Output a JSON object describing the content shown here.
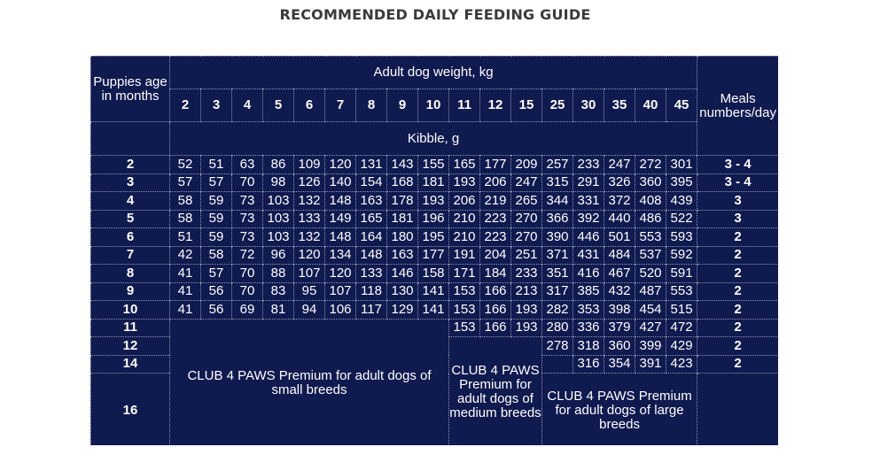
{
  "title": "RECOMMENDED DAILY FEEDING GUIDE",
  "header": {
    "age_label_1": "Puppies age",
    "age_label_2": "in months",
    "weight_label": "Adult dog weight, kg",
    "weights": [
      "2",
      "3",
      "4",
      "5",
      "6",
      "7",
      "8",
      "9",
      "10",
      "11",
      "12",
      "15",
      "25",
      "30",
      "35",
      "40",
      "45"
    ],
    "kibble_label": "Kibble, g",
    "meals_label_1": "Meals",
    "meals_label_2": "numbers/day"
  },
  "rows": [
    {
      "age": "2",
      "values": [
        "52",
        "51",
        "63",
        "86",
        "109",
        "120",
        "131",
        "143",
        "155",
        "165",
        "177",
        "209",
        "257",
        "233",
        "247",
        "272",
        "301"
      ],
      "meals": "3 - 4"
    },
    {
      "age": "3",
      "values": [
        "57",
        "57",
        "70",
        "98",
        "126",
        "140",
        "154",
        "168",
        "181",
        "193",
        "206",
        "247",
        "315",
        "291",
        "326",
        "360",
        "395"
      ],
      "meals": "3 - 4"
    },
    {
      "age": "4",
      "values": [
        "58",
        "59",
        "73",
        "103",
        "132",
        "148",
        "163",
        "178",
        "193",
        "206",
        "219",
        "265",
        "344",
        "331",
        "372",
        "408",
        "439"
      ],
      "meals": "3"
    },
    {
      "age": "5",
      "values": [
        "58",
        "59",
        "73",
        "103",
        "133",
        "149",
        "165",
        "181",
        "196",
        "210",
        "223",
        "270",
        "366",
        "392",
        "440",
        "486",
        "522"
      ],
      "meals": "3"
    },
    {
      "age": "6",
      "values": [
        "51",
        "59",
        "73",
        "103",
        "132",
        "148",
        "164",
        "180",
        "195",
        "210",
        "223",
        "270",
        "390",
        "446",
        "501",
        "553",
        "593"
      ],
      "meals": "2"
    },
    {
      "age": "7",
      "values": [
        "42",
        "58",
        "72",
        "96",
        "120",
        "134",
        "148",
        "163",
        "177",
        "191",
        "204",
        "251",
        "371",
        "431",
        "484",
        "537",
        "592"
      ],
      "meals": "2"
    },
    {
      "age": "8",
      "values": [
        "41",
        "57",
        "70",
        "88",
        "107",
        "120",
        "133",
        "146",
        "158",
        "171",
        "184",
        "233",
        "351",
        "416",
        "467",
        "520",
        "591"
      ],
      "meals": "2"
    },
    {
      "age": "9",
      "values": [
        "41",
        "56",
        "70",
        "83",
        "95",
        "107",
        "118",
        "130",
        "141",
        "153",
        "166",
        "213",
        "317",
        "385",
        "432",
        "487",
        "553"
      ],
      "meals": "2"
    },
    {
      "age": "10",
      "values": [
        "41",
        "56",
        "69",
        "81",
        "94",
        "106",
        "117",
        "129",
        "141",
        "153",
        "166",
        "193",
        "282",
        "353",
        "398",
        "454",
        "515"
      ],
      "meals": "2"
    },
    {
      "age": "11",
      "values": [
        "153",
        "166",
        "193",
        "280",
        "336",
        "379",
        "427",
        "472"
      ],
      "meals": "2"
    },
    {
      "age": "12",
      "values": [
        "278",
        "318",
        "360",
        "399",
        "429"
      ],
      "meals": "2"
    },
    {
      "age": "14",
      "values": [
        "316",
        "354",
        "391",
        "423"
      ],
      "meals": "2"
    },
    {
      "age": "16",
      "values": [],
      "meals": ""
    }
  ],
  "products": {
    "small": "CLUB 4 PAWS Premium for adult dogs of small breeds",
    "medium": "CLUB 4 PAWS Premium for adult dogs of medium breeds",
    "large": "CLUB 4 PAWS Premium for adult dogs of large breeds"
  }
}
